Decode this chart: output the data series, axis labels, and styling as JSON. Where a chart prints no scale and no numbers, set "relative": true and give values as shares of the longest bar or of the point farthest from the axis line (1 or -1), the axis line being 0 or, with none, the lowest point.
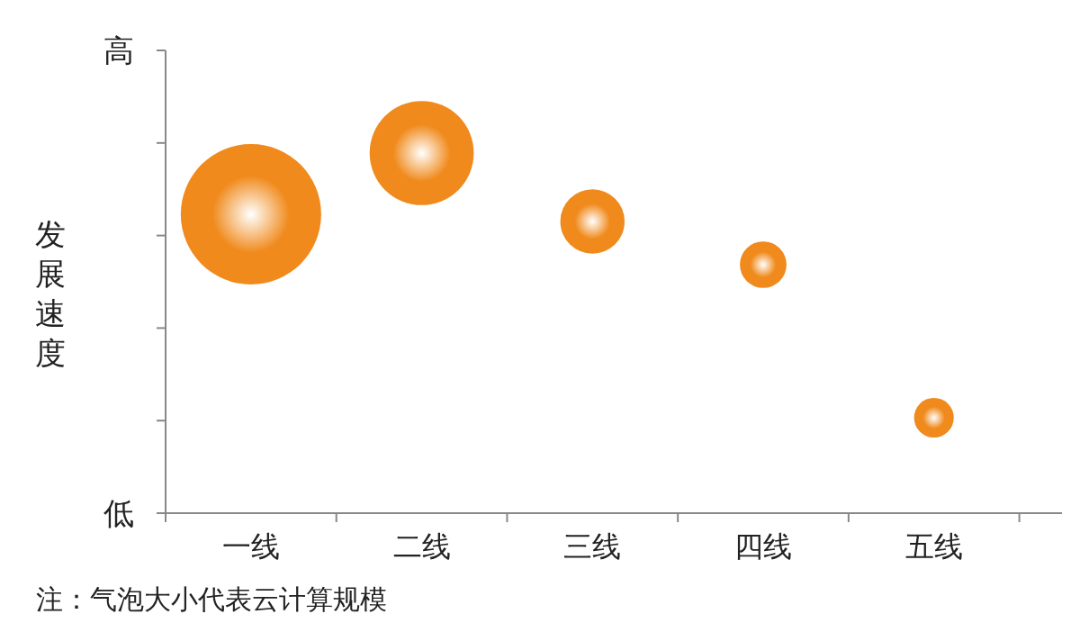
{
  "chart_data": {
    "type": "bubble",
    "relative": true,
    "ylabel": "发展速度",
    "categories": [
      "一线",
      "二线",
      "三线",
      "四线",
      "五线"
    ],
    "values": [
      0.83,
      1,
      0.81,
      0.69,
      0.265
    ],
    "sizes": [
      1,
      0.55,
      0.21,
      0.11,
      0.08
    ],
    "color": "#f08a1c",
    "annotations": [
      "高",
      "低",
      "注：气泡大小代表云计算规模"
    ]
  }
}
